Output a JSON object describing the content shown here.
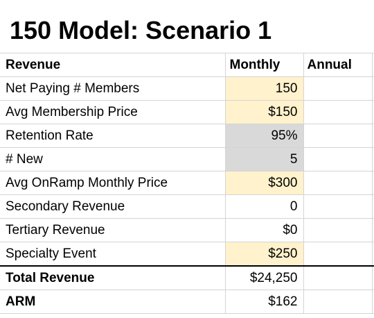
{
  "title": "150 Model: Scenario 1",
  "header": {
    "label": "Revenue",
    "monthly": "Monthly",
    "annual": "Annual"
  },
  "rows": [
    {
      "label": "Net Paying # Members",
      "monthly": "150",
      "annual": ""
    },
    {
      "label": "Avg Membership Price",
      "monthly": "$150",
      "annual": ""
    },
    {
      "label": "Retention Rate",
      "monthly": "95%",
      "annual": ""
    },
    {
      "label": "# New",
      "monthly": "5",
      "annual": ""
    },
    {
      "label": "Avg OnRamp Monthly Price",
      "monthly": "$300",
      "annual": ""
    },
    {
      "label": "Secondary Revenue",
      "monthly": "0",
      "annual": ""
    },
    {
      "label": "Tertiary Revenue",
      "monthly": "$0",
      "annual": ""
    },
    {
      "label": "Specialty Event",
      "monthly": "$250",
      "annual": ""
    }
  ],
  "totals": [
    {
      "label": "Total Revenue",
      "monthly": "$24,250",
      "annual": ""
    },
    {
      "label": "ARM",
      "monthly": "$162",
      "annual": ""
    }
  ],
  "colors": {
    "input_fill": "#fff2cc",
    "assumption_fill": "#d9d9d9",
    "gridline": "#d4d4d4"
  }
}
